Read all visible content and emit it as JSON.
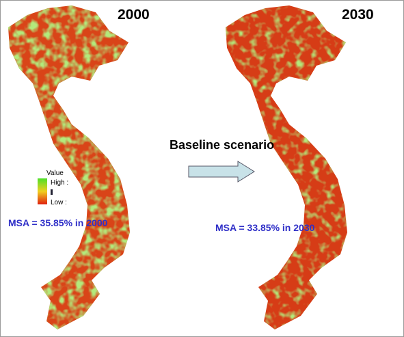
{
  "maps": [
    {
      "year": "2000",
      "msa_label": "MSA = 35.85% in 2000"
    },
    {
      "year": "2030",
      "msa_label": "MSA = 33.85% in 2030"
    }
  ],
  "arrow_label": "Baseline scenario",
  "legend": {
    "title": "Value",
    "high": "High :",
    "low": "Low :"
  }
}
